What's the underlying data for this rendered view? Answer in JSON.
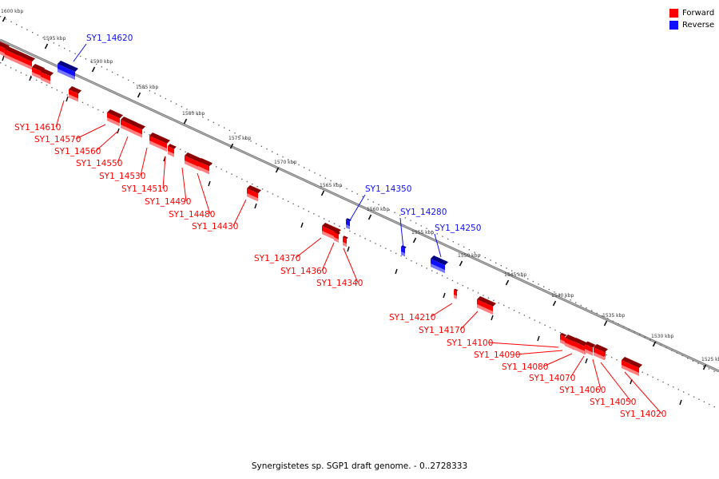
{
  "legend": {
    "forward_label": "Forward",
    "reverse_label": "Reverse",
    "forward_color": "#ff0000",
    "reverse_color": "#1010ff"
  },
  "caption": "Synergistetes sp. SGP1 draft genome. - 0..2728333",
  "ticks": [
    "1600 kbp",
    "1595 kbp",
    "1590 kbp",
    "1585 kbp",
    "1580 kbp",
    "1575 kbp",
    "1570 kbp",
    "1565 kbp",
    "1560 kbp",
    "1555 kbp",
    "1550 kbp",
    "1545 kbp",
    "1540 kbp",
    "1535 kbp",
    "1530 kbp",
    "1525 kbp"
  ],
  "genes": [
    {
      "label": "SY1_14620",
      "strand": "reverse"
    },
    {
      "label": "SY1_14610",
      "strand": "forward"
    },
    {
      "label": "SY1_14570",
      "strand": "forward"
    },
    {
      "label": "SY1_14560",
      "strand": "forward"
    },
    {
      "label": "SY1_14550",
      "strand": "forward"
    },
    {
      "label": "SY1_14530",
      "strand": "forward"
    },
    {
      "label": "SY1_14510",
      "strand": "forward"
    },
    {
      "label": "SY1_14490",
      "strand": "forward"
    },
    {
      "label": "SY1_14480",
      "strand": "forward"
    },
    {
      "label": "SY1_14430",
      "strand": "forward"
    },
    {
      "label": "SY1_14350",
      "strand": "reverse"
    },
    {
      "label": "SY1_14370",
      "strand": "forward"
    },
    {
      "label": "SY1_14360",
      "strand": "forward"
    },
    {
      "label": "SY1_14340",
      "strand": "forward"
    },
    {
      "label": "SY1_14280",
      "strand": "reverse"
    },
    {
      "label": "SY1_14250",
      "strand": "reverse"
    },
    {
      "label": "SY1_14210",
      "strand": "forward"
    },
    {
      "label": "SY1_14170",
      "strand": "forward"
    },
    {
      "label": "SY1_14100",
      "strand": "forward"
    },
    {
      "label": "SY1_14090",
      "strand": "forward"
    },
    {
      "label": "SY1_14080",
      "strand": "forward"
    },
    {
      "label": "SY1_14070",
      "strand": "forward"
    },
    {
      "label": "SY1_14060",
      "strand": "forward"
    },
    {
      "label": "SY1_14050",
      "strand": "forward"
    },
    {
      "label": "SY1_14020",
      "strand": "forward"
    }
  ]
}
